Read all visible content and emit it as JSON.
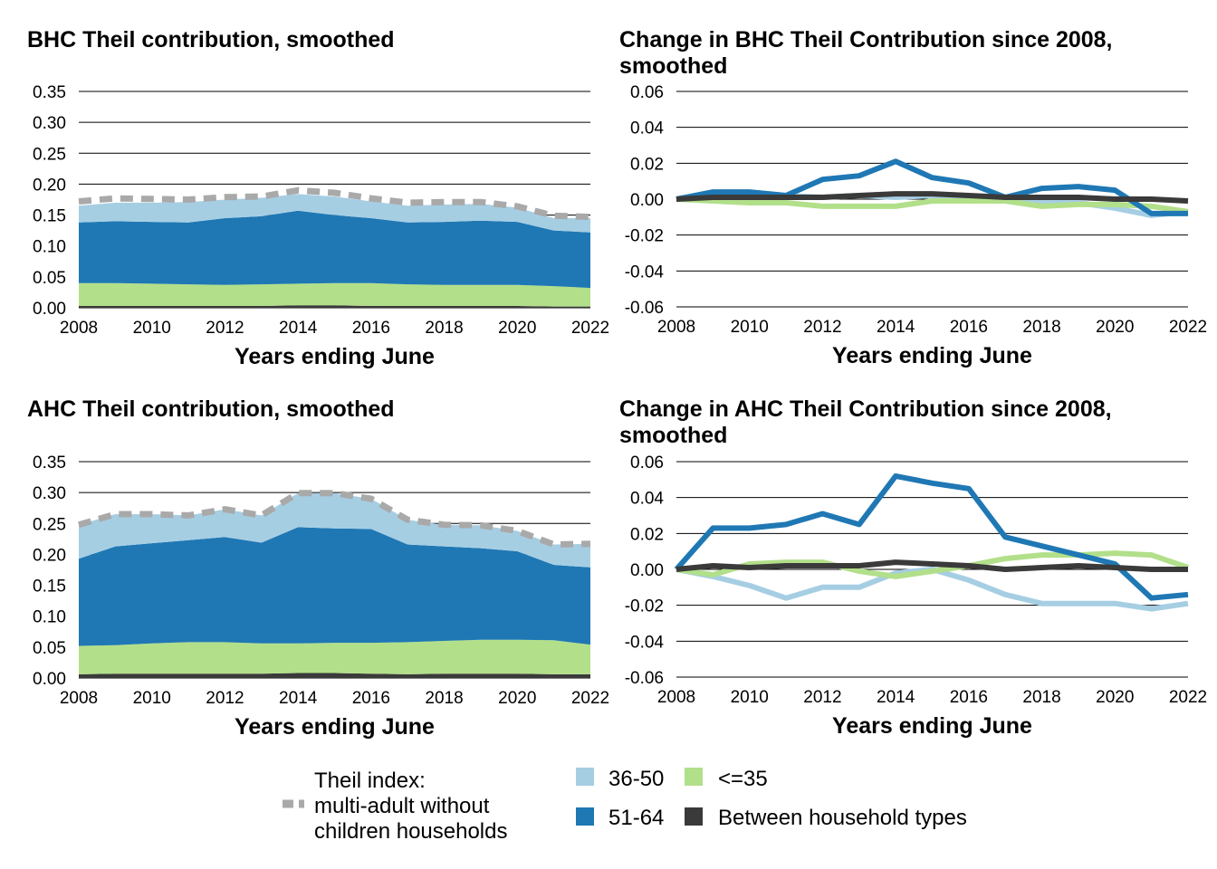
{
  "colors": {
    "age_36_50": "#a6cee3",
    "age_51_64": "#1f78b4",
    "age_le_35": "#b2df8a",
    "between": "#3a3a3a",
    "theil_total": "#a9a9a9",
    "grid": "#000000"
  },
  "legend": {
    "theil_line1": "Theil index:",
    "theil_line2": "multi-adult without",
    "theil_line3": "children households",
    "item_36_50": "36-50",
    "item_le_35": "<=35",
    "item_51_64": "51-64",
    "item_between": "Between household types"
  },
  "chart_data": [
    {
      "type": "area",
      "title": "BHC Theil contribution, smoothed",
      "title_line2": "",
      "xlabel": "Years ending June",
      "ylabel": "",
      "x": [
        2008,
        2009,
        2010,
        2011,
        2012,
        2013,
        2014,
        2015,
        2016,
        2017,
        2018,
        2019,
        2020,
        2021,
        2022
      ],
      "xticks": [
        "2008",
        "2010",
        "2012",
        "2014",
        "2016",
        "2018",
        "2020",
        "2022"
      ],
      "yticks": [
        "0.00",
        "0.05",
        "0.10",
        "0.15",
        "0.20",
        "0.25",
        "0.30",
        "0.35"
      ],
      "ylim": [
        0,
        0.35
      ],
      "grid": true,
      "series": [
        {
          "name": "Between household types",
          "key": "between",
          "values": [
            0.003,
            0.003,
            0.003,
            0.003,
            0.003,
            0.003,
            0.004,
            0.004,
            0.003,
            0.003,
            0.003,
            0.003,
            0.003,
            0.002,
            0.002
          ]
        },
        {
          "name": "<=35",
          "key": "age_le_35",
          "values": [
            0.037,
            0.037,
            0.036,
            0.035,
            0.034,
            0.035,
            0.035,
            0.036,
            0.037,
            0.035,
            0.034,
            0.034,
            0.034,
            0.033,
            0.03
          ]
        },
        {
          "name": "51-64",
          "key": "age_51_64",
          "values": [
            0.098,
            0.1,
            0.1,
            0.1,
            0.108,
            0.11,
            0.118,
            0.11,
            0.105,
            0.1,
            0.102,
            0.104,
            0.102,
            0.09,
            0.09
          ]
        },
        {
          "name": "36-50",
          "key": "age_36_50",
          "values": [
            0.027,
            0.03,
            0.031,
            0.033,
            0.03,
            0.03,
            0.027,
            0.03,
            0.027,
            0.027,
            0.028,
            0.027,
            0.023,
            0.02,
            0.023
          ]
        }
      ],
      "total": {
        "name": "Theil index: multi-adult without children households",
        "values": [
          0.172,
          0.177,
          0.176,
          0.175,
          0.179,
          0.18,
          0.19,
          0.186,
          0.177,
          0.17,
          0.171,
          0.171,
          0.164,
          0.149,
          0.147
        ]
      }
    },
    {
      "type": "line",
      "title": "Change in BHC Theil Contribution since 2008,",
      "title_line2": "smoothed",
      "xlabel": "Years ending June",
      "ylabel": "",
      "x": [
        2008,
        2009,
        2010,
        2011,
        2012,
        2013,
        2014,
        2015,
        2016,
        2017,
        2018,
        2019,
        2020,
        2021,
        2022
      ],
      "xticks": [
        "2008",
        "2010",
        "2012",
        "2014",
        "2016",
        "2018",
        "2020",
        "2022"
      ],
      "yticks": [
        "-0.06",
        "-0.04",
        "-0.02",
        "0.00",
        "0.02",
        "0.04",
        "0.06"
      ],
      "ylim": [
        -0.06,
        0.06
      ],
      "grid": true,
      "series": [
        {
          "name": "36-50",
          "key": "age_36_50",
          "values": [
            0.0,
            0.001,
            0.002,
            0.002,
            0.001,
            0.002,
            0.001,
            0.002,
            0.001,
            0.0,
            -0.001,
            -0.002,
            -0.005,
            -0.009,
            -0.007
          ]
        },
        {
          "name": "<=35",
          "key": "age_le_35",
          "values": [
            0.0,
            -0.001,
            -0.002,
            -0.002,
            -0.004,
            -0.004,
            -0.004,
            -0.001,
            -0.001,
            -0.001,
            -0.004,
            -0.003,
            -0.003,
            -0.004,
            -0.007
          ]
        },
        {
          "name": "51-64",
          "key": "age_51_64",
          "values": [
            0.0,
            0.004,
            0.004,
            0.002,
            0.011,
            0.013,
            0.021,
            0.012,
            0.009,
            0.001,
            0.006,
            0.007,
            0.005,
            -0.008,
            -0.008
          ]
        },
        {
          "name": "Between household types",
          "key": "between",
          "values": [
            0.0,
            0.001,
            0.001,
            0.001,
            0.001,
            0.002,
            0.003,
            0.003,
            0.002,
            0.001,
            0.001,
            0.001,
            0.0,
            0.0,
            -0.001
          ]
        }
      ]
    },
    {
      "type": "area",
      "title": "AHC Theil contribution, smoothed",
      "title_line2": "",
      "xlabel": "Years ending June",
      "ylabel": "",
      "x": [
        2008,
        2009,
        2010,
        2011,
        2012,
        2013,
        2014,
        2015,
        2016,
        2017,
        2018,
        2019,
        2020,
        2021,
        2022
      ],
      "xticks": [
        "2008",
        "2010",
        "2012",
        "2014",
        "2016",
        "2018",
        "2020",
        "2022"
      ],
      "yticks": [
        "0.00",
        "0.05",
        "0.10",
        "0.15",
        "0.20",
        "0.25",
        "0.30",
        "0.35"
      ],
      "ylim": [
        0,
        0.35
      ],
      "grid": true,
      "series": [
        {
          "name": "Between household types",
          "key": "between",
          "values": [
            0.006,
            0.007,
            0.007,
            0.007,
            0.007,
            0.007,
            0.008,
            0.008,
            0.007,
            0.006,
            0.007,
            0.007,
            0.007,
            0.006,
            0.006
          ]
        },
        {
          "name": "<=35",
          "key": "age_le_35",
          "values": [
            0.046,
            0.046,
            0.049,
            0.051,
            0.051,
            0.049,
            0.048,
            0.049,
            0.05,
            0.052,
            0.053,
            0.055,
            0.055,
            0.055,
            0.048
          ]
        },
        {
          "name": "51-64",
          "key": "age_51_64",
          "values": [
            0.141,
            0.16,
            0.162,
            0.165,
            0.17,
            0.163,
            0.188,
            0.185,
            0.184,
            0.158,
            0.153,
            0.148,
            0.143,
            0.122,
            0.125
          ]
        },
        {
          "name": "36-50",
          "key": "age_36_50",
          "values": [
            0.055,
            0.052,
            0.047,
            0.04,
            0.045,
            0.044,
            0.055,
            0.057,
            0.049,
            0.04,
            0.035,
            0.037,
            0.033,
            0.033,
            0.038
          ]
        }
      ],
      "total": {
        "name": "Theil index: multi-adult without children households",
        "values": [
          0.248,
          0.265,
          0.265,
          0.263,
          0.273,
          0.263,
          0.299,
          0.299,
          0.29,
          0.256,
          0.248,
          0.247,
          0.238,
          0.216,
          0.217
        ]
      }
    },
    {
      "type": "line",
      "title": "Change in AHC Theil Contribution since 2008,",
      "title_line2": "smoothed",
      "xlabel": "Years ending June",
      "ylabel": "",
      "x": [
        2008,
        2009,
        2010,
        2011,
        2012,
        2013,
        2014,
        2015,
        2016,
        2017,
        2018,
        2019,
        2020,
        2021,
        2022
      ],
      "xticks": [
        "2008",
        "2010",
        "2012",
        "2014",
        "2016",
        "2018",
        "2020",
        "2022"
      ],
      "yticks": [
        "-0.06",
        "-0.04",
        "-0.02",
        "0.00",
        "0.02",
        "0.04",
        "0.06"
      ],
      "ylim": [
        -0.06,
        0.06
      ],
      "grid": true,
      "series": [
        {
          "name": "36-50",
          "key": "age_36_50",
          "values": [
            0.0,
            -0.004,
            -0.009,
            -0.016,
            -0.01,
            -0.01,
            -0.002,
            0.0,
            -0.006,
            -0.014,
            -0.019,
            -0.019,
            -0.019,
            -0.022,
            -0.019
          ]
        },
        {
          "name": "<=35",
          "key": "age_le_35",
          "values": [
            0.0,
            -0.003,
            0.003,
            0.004,
            0.004,
            -0.001,
            -0.004,
            -0.001,
            0.002,
            0.006,
            0.008,
            0.008,
            0.009,
            0.008,
            0.001
          ]
        },
        {
          "name": "51-64",
          "key": "age_51_64",
          "values": [
            0.0,
            0.023,
            0.023,
            0.025,
            0.031,
            0.025,
            0.052,
            0.048,
            0.045,
            0.018,
            0.013,
            0.008,
            0.003,
            -0.016,
            -0.014
          ]
        },
        {
          "name": "Between household types",
          "key": "between",
          "values": [
            0.0,
            0.002,
            0.001,
            0.002,
            0.002,
            0.002,
            0.004,
            0.003,
            0.002,
            0.0,
            0.001,
            0.002,
            0.001,
            0.0,
            0.0
          ]
        }
      ]
    }
  ]
}
